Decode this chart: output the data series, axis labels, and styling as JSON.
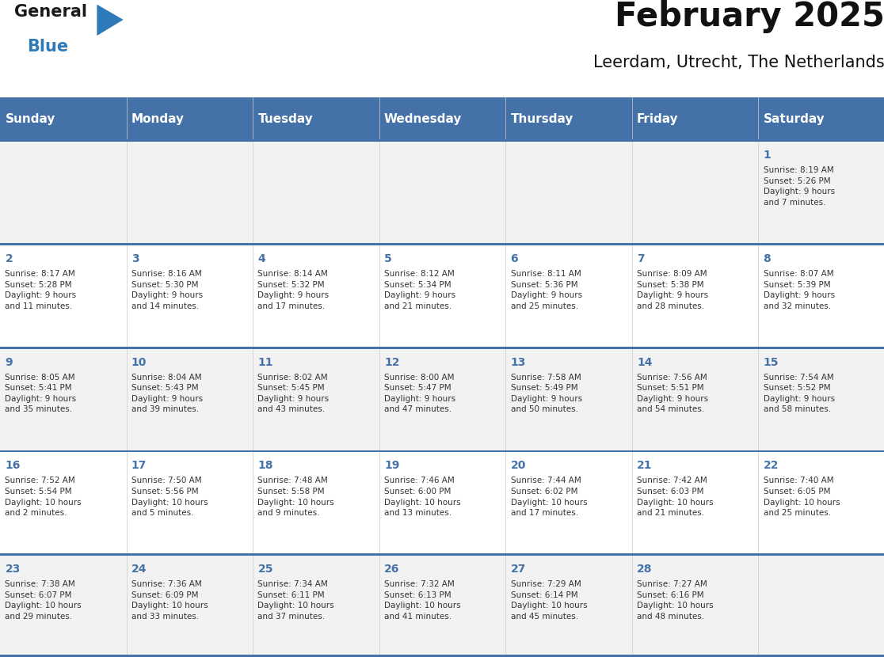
{
  "title": "February 2025",
  "subtitle": "Leerdam, Utrecht, The Netherlands",
  "header_bg_color": "#4472a8",
  "header_text_color": "#ffffff",
  "cell_bg_color_odd": "#f2f2f2",
  "cell_bg_color_even": "#ffffff",
  "divider_color": "#4472a8",
  "text_color": "#333333",
  "day_number_color": "#4472a8",
  "day_headers": [
    "Sunday",
    "Monday",
    "Tuesday",
    "Wednesday",
    "Thursday",
    "Friday",
    "Saturday"
  ],
  "weeks": [
    [
      {
        "day": "",
        "info": ""
      },
      {
        "day": "",
        "info": ""
      },
      {
        "day": "",
        "info": ""
      },
      {
        "day": "",
        "info": ""
      },
      {
        "day": "",
        "info": ""
      },
      {
        "day": "",
        "info": ""
      },
      {
        "day": "1",
        "info": "Sunrise: 8:19 AM\nSunset: 5:26 PM\nDaylight: 9 hours\nand 7 minutes."
      }
    ],
    [
      {
        "day": "2",
        "info": "Sunrise: 8:17 AM\nSunset: 5:28 PM\nDaylight: 9 hours\nand 11 minutes."
      },
      {
        "day": "3",
        "info": "Sunrise: 8:16 AM\nSunset: 5:30 PM\nDaylight: 9 hours\nand 14 minutes."
      },
      {
        "day": "4",
        "info": "Sunrise: 8:14 AM\nSunset: 5:32 PM\nDaylight: 9 hours\nand 17 minutes."
      },
      {
        "day": "5",
        "info": "Sunrise: 8:12 AM\nSunset: 5:34 PM\nDaylight: 9 hours\nand 21 minutes."
      },
      {
        "day": "6",
        "info": "Sunrise: 8:11 AM\nSunset: 5:36 PM\nDaylight: 9 hours\nand 25 minutes."
      },
      {
        "day": "7",
        "info": "Sunrise: 8:09 AM\nSunset: 5:38 PM\nDaylight: 9 hours\nand 28 minutes."
      },
      {
        "day": "8",
        "info": "Sunrise: 8:07 AM\nSunset: 5:39 PM\nDaylight: 9 hours\nand 32 minutes."
      }
    ],
    [
      {
        "day": "9",
        "info": "Sunrise: 8:05 AM\nSunset: 5:41 PM\nDaylight: 9 hours\nand 35 minutes."
      },
      {
        "day": "10",
        "info": "Sunrise: 8:04 AM\nSunset: 5:43 PM\nDaylight: 9 hours\nand 39 minutes."
      },
      {
        "day": "11",
        "info": "Sunrise: 8:02 AM\nSunset: 5:45 PM\nDaylight: 9 hours\nand 43 minutes."
      },
      {
        "day": "12",
        "info": "Sunrise: 8:00 AM\nSunset: 5:47 PM\nDaylight: 9 hours\nand 47 minutes."
      },
      {
        "day": "13",
        "info": "Sunrise: 7:58 AM\nSunset: 5:49 PM\nDaylight: 9 hours\nand 50 minutes."
      },
      {
        "day": "14",
        "info": "Sunrise: 7:56 AM\nSunset: 5:51 PM\nDaylight: 9 hours\nand 54 minutes."
      },
      {
        "day": "15",
        "info": "Sunrise: 7:54 AM\nSunset: 5:52 PM\nDaylight: 9 hours\nand 58 minutes."
      }
    ],
    [
      {
        "day": "16",
        "info": "Sunrise: 7:52 AM\nSunset: 5:54 PM\nDaylight: 10 hours\nand 2 minutes."
      },
      {
        "day": "17",
        "info": "Sunrise: 7:50 AM\nSunset: 5:56 PM\nDaylight: 10 hours\nand 5 minutes."
      },
      {
        "day": "18",
        "info": "Sunrise: 7:48 AM\nSunset: 5:58 PM\nDaylight: 10 hours\nand 9 minutes."
      },
      {
        "day": "19",
        "info": "Sunrise: 7:46 AM\nSunset: 6:00 PM\nDaylight: 10 hours\nand 13 minutes."
      },
      {
        "day": "20",
        "info": "Sunrise: 7:44 AM\nSunset: 6:02 PM\nDaylight: 10 hours\nand 17 minutes."
      },
      {
        "day": "21",
        "info": "Sunrise: 7:42 AM\nSunset: 6:03 PM\nDaylight: 10 hours\nand 21 minutes."
      },
      {
        "day": "22",
        "info": "Sunrise: 7:40 AM\nSunset: 6:05 PM\nDaylight: 10 hours\nand 25 minutes."
      }
    ],
    [
      {
        "day": "23",
        "info": "Sunrise: 7:38 AM\nSunset: 6:07 PM\nDaylight: 10 hours\nand 29 minutes."
      },
      {
        "day": "24",
        "info": "Sunrise: 7:36 AM\nSunset: 6:09 PM\nDaylight: 10 hours\nand 33 minutes."
      },
      {
        "day": "25",
        "info": "Sunrise: 7:34 AM\nSunset: 6:11 PM\nDaylight: 10 hours\nand 37 minutes."
      },
      {
        "day": "26",
        "info": "Sunrise: 7:32 AM\nSunset: 6:13 PM\nDaylight: 10 hours\nand 41 minutes."
      },
      {
        "day": "27",
        "info": "Sunrise: 7:29 AM\nSunset: 6:14 PM\nDaylight: 10 hours\nand 45 minutes."
      },
      {
        "day": "28",
        "info": "Sunrise: 7:27 AM\nSunset: 6:16 PM\nDaylight: 10 hours\nand 48 minutes."
      },
      {
        "day": "",
        "info": ""
      }
    ]
  ]
}
